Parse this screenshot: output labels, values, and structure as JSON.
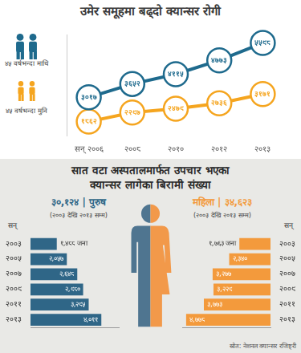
{
  "chart_data": [
    {
      "type": "line",
      "title": "उमेर समूहमा बढ्दो क्यान्सर रोगी",
      "categories": [
        "सन् २००६",
        "२००८",
        "२०१०",
        "२०१२",
        "२०१३"
      ],
      "series": [
        {
          "name": "४५ वर्षभन्दा माथि",
          "color": "#1e6a8d",
          "marker": "circle",
          "values": [
            3017,
            3652,
            4115,
            4773,
            5598
          ],
          "value_labels": [
            "३०१७",
            "३६५२",
            "४११५",
            "४७७३",
            "५५९८"
          ]
        },
        {
          "name": "४५ वर्षभन्दा मुनि",
          "color": "#f5a51f",
          "marker": "circle",
          "values": [
            1862,
            2297,
            2479,
            2736,
            3171
          ],
          "value_labels": [
            "१८६२",
            "२२९७",
            "२४७९",
            "२७३६",
            "३१७१"
          ]
        }
      ],
      "ylim": [
        1200,
        6000
      ],
      "grid": false,
      "legend": "left",
      "data_labels": true,
      "tick_labels": "x"
    },
    {
      "type": "bar",
      "orientation": "horizontal",
      "title": "३०,१२४ | पुरुष",
      "subtitle": "(२००३ देखि २०१३ सम्म)",
      "ylabel": "सन्",
      "categories": [
        "२००३",
        "२००५",
        "२००७",
        "२००९",
        "२०११",
        "२०१३"
      ],
      "values": [
        1488,
        2057,
        2648,
        2980,
        3295,
        4011
      ],
      "value_labels": [
        "१,४८८ जना",
        "२,०५७",
        "२,६४८",
        "२,९८०",
        "३,२९५",
        "४,०११"
      ],
      "color": "#2f6687",
      "xlim": [
        0,
        5000
      ],
      "grid": false,
      "data_labels": true,
      "tick_labels": "y"
    },
    {
      "type": "bar",
      "orientation": "horizontal",
      "title": "महिला | ३४,६२३",
      "subtitle": "(२००३ देखि २०१३ सम्म)",
      "ylabel": "सन्",
      "categories": [
        "२००३",
        "२००५",
        "२००७",
        "२००९",
        "२०११",
        "२०१३"
      ],
      "values": [
        1763,
        2340,
        3277,
        3229,
        3773,
        4778
      ],
      "value_labels": [
        "१,७६३ जना",
        "२,३४०",
        "३,२७७",
        "३,२२९",
        "३,७७३",
        "४,७७८"
      ],
      "color": "#f39a3c",
      "xlim": [
        5000,
        0
      ],
      "grid": false,
      "data_labels": true,
      "tick_labels": "y"
    }
  ],
  "panel": {
    "title_lines": [
      "सात वटा अस्पतालमार्फत उपचार भएका",
      "क्यान्सर लागेका बिरामी संख्या"
    ],
    "source": "स्रोत: नेशनल क्यान्सर रजिष्ट्री"
  }
}
